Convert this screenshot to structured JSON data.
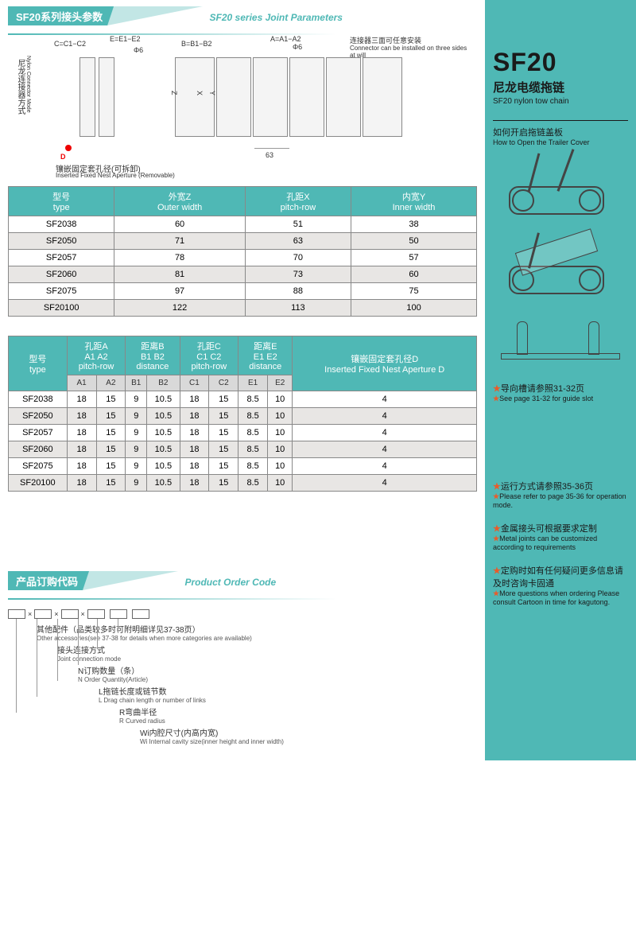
{
  "colors": {
    "accent": "#4fb8b5",
    "star": "#e85c2b",
    "stripe": "#e8e6e4",
    "border": "#888"
  },
  "section1": {
    "title_cn": "SF20系列接头参数",
    "title_en": "SF20 series Joint Parameters"
  },
  "diagram": {
    "label_mode_cn": "尼龙连接器方式",
    "label_mode_en": "Nylon Connector Mode",
    "c_label": "C=C1−C2",
    "e_label": "E=E1−E2",
    "b_label": "B=B1−B2",
    "a_label": "A=A1−A2",
    "phi": "Φ6",
    "conn_cn": "连接器三面可任意安装",
    "conn_en": "Connector can be installed on three sides at will",
    "dim_63": "63",
    "z": "Z",
    "x": "X",
    "y": "Y",
    "d": "D",
    "nest_cn": "镶嵌固定套孔径(可拆卸)",
    "nest_en": "Inserted Fixed Nest Aperture (Removable)"
  },
  "table1": {
    "headers": [
      {
        "cn": "型号",
        "en": "type"
      },
      {
        "cn": "外宽Z",
        "en": "Outer width"
      },
      {
        "cn": "孔距X",
        "en": "pitch-row"
      },
      {
        "cn": "内宽Y",
        "en": "Inner width"
      }
    ],
    "rows": [
      {
        "type": "SF2038",
        "z": "60",
        "x": "51",
        "y": "38"
      },
      {
        "type": "SF2050",
        "z": "71",
        "x": "63",
        "y": "50"
      },
      {
        "type": "SF2057",
        "z": "78",
        "x": "70",
        "y": "57"
      },
      {
        "type": "SF2060",
        "z": "81",
        "x": "73",
        "y": "60"
      },
      {
        "type": "SF2075",
        "z": "97",
        "x": "88",
        "y": "75"
      },
      {
        "type": "SF20100",
        "z": "122",
        "x": "113",
        "y": "100"
      }
    ]
  },
  "table2": {
    "headers": {
      "type": {
        "cn": "型号",
        "en": "type"
      },
      "a": {
        "cn": "孔距A",
        "sub": "A1 A2",
        "en": "pitch-row"
      },
      "b": {
        "cn": "距离B",
        "sub": "B1 B2",
        "en": "distance"
      },
      "c": {
        "cn": "孔距C",
        "sub": "C1 C2",
        "en": "pitch-row"
      },
      "e": {
        "cn": "距离E",
        "sub": "E1 E2",
        "en": "distance"
      },
      "d": {
        "cn": "镶嵌固定套孔径D",
        "en": "Inserted Fixed Nest Aperture D"
      }
    },
    "subheaders": [
      "A1",
      "A2",
      "B1",
      "B2",
      "C1",
      "C2",
      "E1",
      "E2"
    ],
    "rows": [
      {
        "type": "SF2038",
        "a1": "18",
        "a2": "15",
        "b1": "9",
        "b2": "10.5",
        "c1": "18",
        "c2": "15",
        "e1": "8.5",
        "e2": "10",
        "d": "4"
      },
      {
        "type": "SF2050",
        "a1": "18",
        "a2": "15",
        "b1": "9",
        "b2": "10.5",
        "c1": "18",
        "c2": "15",
        "e1": "8.5",
        "e2": "10",
        "d": "4"
      },
      {
        "type": "SF2057",
        "a1": "18",
        "a2": "15",
        "b1": "9",
        "b2": "10.5",
        "c1": "18",
        "c2": "15",
        "e1": "8.5",
        "e2": "10",
        "d": "4"
      },
      {
        "type": "SF2060",
        "a1": "18",
        "a2": "15",
        "b1": "9",
        "b2": "10.5",
        "c1": "18",
        "c2": "15",
        "e1": "8.5",
        "e2": "10",
        "d": "4"
      },
      {
        "type": "SF2075",
        "a1": "18",
        "a2": "15",
        "b1": "9",
        "b2": "10.5",
        "c1": "18",
        "c2": "15",
        "e1": "8.5",
        "e2": "10",
        "d": "4"
      },
      {
        "type": "SF20100",
        "a1": "18",
        "a2": "15",
        "b1": "9",
        "b2": "10.5",
        "c1": "18",
        "c2": "15",
        "e1": "8.5",
        "e2": "10",
        "d": "4"
      }
    ]
  },
  "section2": {
    "title_cn": "产品订购代码",
    "title_en": "Product Order Code"
  },
  "order": {
    "items": [
      {
        "cn": "其他配件（品类较多时可附明细详见37-38页）",
        "en": "Other accessories(see 37-38 for details when more categories are available)"
      },
      {
        "cn": "接头连接方式",
        "en": "Joint connection mode"
      },
      {
        "cn": "N订购数量（条）",
        "en": "N Order Quantity(Article)"
      },
      {
        "cn": "L拖链长度或链节数",
        "en": "L Drag chain length or number of links"
      },
      {
        "cn": "R弯曲半径",
        "en": "R Curved radius"
      },
      {
        "cn": "Wi内腔尺寸(内高内宽)",
        "en": "Wi Internal cavity size(inner height and inner width)"
      }
    ]
  },
  "sidebar": {
    "title": "SF20",
    "sub_cn": "尼龙电缆拖链",
    "sub_en": "SF20 nylon tow chain",
    "howto_cn": "如何开启拖链盖板",
    "howto_en": "How to Open the Trailer Cover",
    "notes": [
      {
        "cn": "导向槽请参照31-32页",
        "en": "See page 31-32 for guide slot"
      },
      {
        "cn": "运行方式请参照35-36页",
        "en": "Please refer to page 35-36 for operation mode."
      },
      {
        "cn": "金属接头可根据要求定制",
        "en": "Metal joints can be customized according to requirements"
      },
      {
        "cn": "定购时如有任何疑问更多信息请及时咨询卡固通",
        "en": "More questions when ordering Please consult Cartoon in time for kagutong."
      }
    ]
  }
}
